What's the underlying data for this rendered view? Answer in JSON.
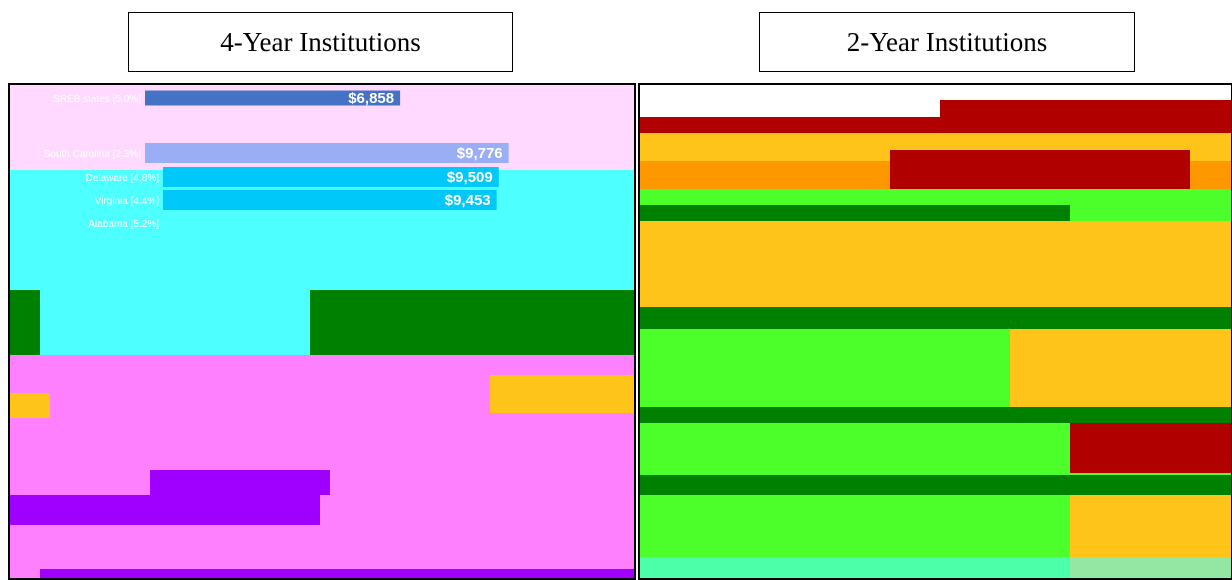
{
  "titles": {
    "left": "4-Year Institutions",
    "right": "2-Year Institutions"
  },
  "colors": {
    "pink": "#ffd9ff",
    "cyan": "#4dffff",
    "magenta": "#ff80ff",
    "purple": "#a000ff",
    "dark_green": "#008000",
    "bright_green": "#4cff2a",
    "dark_red": "#b00000",
    "orange": "#ff9800",
    "yellow": "#ffc41a",
    "bar_dark_blue": "#4472c4",
    "bar_light_blue": "#9aaef5",
    "bar_cyan": "#00c8f8"
  },
  "chart_data": [
    {
      "type": "bar",
      "orientation": "horizontal",
      "panel": "4-Year Institutions",
      "categories": [
        "SREB states [5.0%]",
        "South Carolina [2.3%]",
        "Delaware [4.8%]",
        "Virginia [4.4%]",
        "Alabama [5.2%]"
      ],
      "values": [
        6858,
        9776,
        9509,
        9453,
        null
      ],
      "value_labels": [
        "$6,858",
        "$9,776",
        "$9,509",
        "$9,453",
        ""
      ]
    }
  ]
}
